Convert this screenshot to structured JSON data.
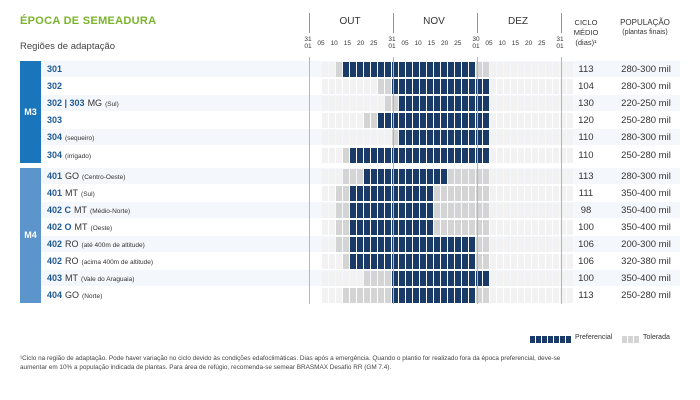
{
  "title": "ÉPOCA DE SEMEADURA",
  "subtitle": "Regiões de adaptação",
  "months": [
    "OUT",
    "NOV",
    "DEZ"
  ],
  "day_ticks": {
    "start": [
      "31",
      "01"
    ],
    "out": [
      "05",
      "10",
      "15",
      "20",
      "25"
    ],
    "out_end": [
      "31",
      "01"
    ],
    "nov": [
      "05",
      "10",
      "15",
      "20",
      "25"
    ],
    "nov_end": [
      "30",
      "01"
    ],
    "dez": [
      "05",
      "10",
      "15",
      "20",
      "25"
    ],
    "dez_end": [
      "31",
      "01"
    ]
  },
  "col_headers": {
    "cycle": [
      "CICLO",
      "MÉDIO",
      "(dias)¹"
    ],
    "population": [
      "POPULAÇÃO",
      "(plantas finais)"
    ]
  },
  "colors": {
    "preferencial": "#1a3a68",
    "tolerada": "#d4d4d4",
    "empty": "#f2f2f2",
    "m3": "#1a75bb",
    "m4": "#5b95cc",
    "row_band": "#f4f7fb"
  },
  "groups": [
    {
      "label": "M3",
      "rows": 6
    },
    {
      "label": "M4",
      "rows": 8
    }
  ],
  "rows": [
    {
      "code": "301",
      "region": "",
      "note": "",
      "cycle": "113",
      "population": "280-300 mil"
    },
    {
      "code": "302",
      "region": "",
      "note": "",
      "cycle": "104",
      "population": "280-300 mil"
    },
    {
      "code": "302 | 303",
      "region": "MG",
      "note": "(Sul)",
      "cycle": "130",
      "population": "220-250 mil"
    },
    {
      "code": "303",
      "region": "",
      "note": "",
      "cycle": "120",
      "population": "250-280 mil"
    },
    {
      "code": "304",
      "region": "",
      "note": "(sequeiro)",
      "cycle": "110",
      "population": "280-300 mil"
    },
    {
      "code": "304",
      "region": "",
      "note": "(irrigado)",
      "cycle": "110",
      "population": "250-280 mil"
    },
    {
      "code": "401",
      "region": "GO",
      "note": "(Centro-Oeste)",
      "cycle": "113",
      "population": "280-300 mil"
    },
    {
      "code": "401",
      "region": "MT",
      "note": "(Sul)",
      "cycle": "111",
      "population": "350-400 mil"
    },
    {
      "code": "402 C",
      "region": "MT",
      "note": "(Médio-Norte)",
      "cycle": "98",
      "population": "350-400 mil"
    },
    {
      "code": "402 O",
      "region": "MT",
      "note": "(Oeste)",
      "cycle": "100",
      "population": "350-400 mil"
    },
    {
      "code": "402",
      "region": "RO",
      "note": "(até 400m de altitude)",
      "cycle": "106",
      "population": "200-300 mil"
    },
    {
      "code": "402",
      "region": "RO",
      "note": "(acima 400m de altitude)",
      "cycle": "106",
      "population": "320-380 mil"
    },
    {
      "code": "403",
      "region": "MT",
      "note": "(Vale do Araguaia)",
      "cycle": "100",
      "population": "350-400 mil"
    },
    {
      "code": "404",
      "region": "GO",
      "note": "(Norte)",
      "cycle": "113",
      "population": "250-280 mil"
    }
  ],
  "chart_data": {
    "type": "heatmap",
    "x_unit": "sowing window cell (OUT cells 1-12, NOV cells 13-24, DEZ cells 25-36)",
    "states": [
      "empty",
      "tolerada",
      "preferencial"
    ],
    "series": [
      {
        "row": "301",
        "cells": "001222222222222222222211000000000000"
      },
      {
        "row": "302",
        "cells": "000000001122222222222222000000000000"
      },
      {
        "row": "302 | 303 MG",
        "cells": "000000000112222222222222000000000000"
      },
      {
        "row": "303",
        "cells": "000000112222222222222222000000000000"
      },
      {
        "row": "304 sequeiro",
        "cells": "000000000012222222222222000000000000"
      },
      {
        "row": "304 irrigado",
        "cells": "000122222222222222222222000000000000"
      },
      {
        "row": "401 GO",
        "cells": "000111222222222222111111000000000000"
      },
      {
        "row": "401 MT",
        "cells": "001122222222222211111111000000000000"
      },
      {
        "row": "402 C MT",
        "cells": "001122222222222211111111000000000000"
      },
      {
        "row": "402 O MT",
        "cells": "001122222222222211111111000000000000"
      },
      {
        "row": "402 RO até 400m",
        "cells": "001122222222222222222211000000000000"
      },
      {
        "row": "402 RO acima 400m",
        "cells": "000122222222222222222211000000000000"
      },
      {
        "row": "403 MT",
        "cells": "000000111122222222222222000000000000"
      },
      {
        "row": "404 GO",
        "cells": "000111111122222222222211000000000000"
      }
    ]
  },
  "legend": [
    {
      "label": "Preferencial",
      "color_key": "preferencial"
    },
    {
      "label": "Tolerada",
      "color_key": "tolerada"
    }
  ],
  "footnote": {
    "line1": "¹Ciclo na região de adaptação. Pode haver variação no ciclo devido às condições edafoclimáticas. Dias após a emergência. Quando o plantio for realizado fora da época preferencial, deve-se",
    "line2": "aumentar em 10% a população indicada de plantas. Para área de refúgio, recomenda-se semear BRASMAX Desafio RR (GM 7.4)."
  }
}
